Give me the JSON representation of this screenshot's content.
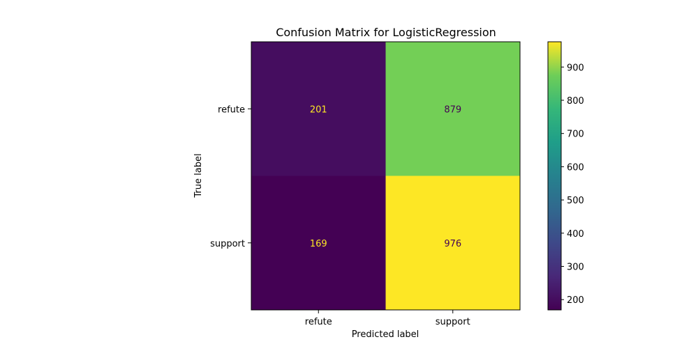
{
  "chart_data": {
    "type": "heatmap",
    "title": "Confusion Matrix for LogisticRegression",
    "xlabel": "Predicted label",
    "ylabel": "True label",
    "x_categories": [
      "refute",
      "support"
    ],
    "y_categories": [
      "refute",
      "support"
    ],
    "values": [
      [
        201,
        879
      ],
      [
        169,
        976
      ]
    ],
    "colormap": "viridis",
    "colorbar": {
      "range": [
        169,
        976
      ],
      "ticks": [
        200,
        300,
        400,
        500,
        600,
        700,
        800,
        900
      ]
    },
    "text_colors": {
      "on_dark": "#fde725",
      "on_light": "#440154"
    }
  }
}
